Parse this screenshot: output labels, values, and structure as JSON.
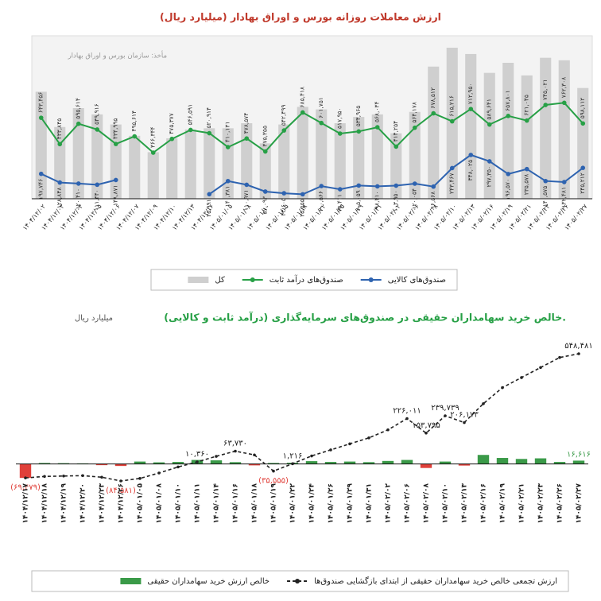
{
  "chart_data": [
    {
      "type": "combo",
      "title": "ارزش معاملات روزانه بورس و اوراق بهادار (میلیارد ریال)",
      "title_color": "#c0392b",
      "source": "مأخذ: سازمان بورس و اوراق بهادار",
      "categories": [
        "۱۴۰۴/۱۲/۰۲",
        "۱۴۰۴/۱۲/۰۳",
        "۱۴۰۴/۱۲/۰۴",
        "۱۴۰۴/۱۲/۰۵",
        "۱۴۰۴/۱۲/۰۶",
        "۱۴۰۴/۱۲/۰۷",
        "۱۴۰۴/۱۲/۰۹",
        "۱۴۰۴/۱۲/۱۰",
        "۱۴۰۴/۱۲/۱۳",
        "۱۴۰۴/۱۲/۱۶",
        "۱۴۰۵/۰۱/۰۵",
        "۱۴۰۵/۰۱/۰۸",
        "۱۴۰۵/۰۱/۱۰",
        "۱۴۰۵/۰۱/۱۵",
        "۱۴۰۵/۰۱/۱۸",
        "۱۴۰۵/۰۱/۲۲",
        "۱۴۰۵/۰۱/۲۵",
        "۱۴۰۵/۰۱/۲۹",
        "۱۴۰۵/۰۱/۳۱",
        "۱۴۰۵/۰۲/۰۲",
        "۱۴۰۵/۰۲/۰۶",
        "۱۴۰۵/۰۲/۰۸",
        "۱۴۰۵/۰۲/۱۰",
        "۱۴۰۵/۰۲/۱۳",
        "۱۴۰۵/۰۲/۱۶",
        "۱۴۰۵/۰۲/۱۹",
        "۱۴۰۵/۰۲/۲۱",
        "۱۴۰۵/۰۲/۲۳",
        "۱۴۰۵/۰۲/۲۶",
        "۱۴۰۵/۰۲/۲۷"
      ],
      "series": [
        {
          "name": "کل",
          "kind": "bar",
          "color": "#cfcfcf",
          "values": [
            850000,
            570000,
            720000,
            670000,
            590000,
            500000,
            370000,
            480000,
            550000,
            560000,
            560000,
            600000,
            440000,
            590000,
            730000,
            710000,
            600000,
            650000,
            670000,
            520000,
            690000,
            1050000,
            1200000,
            1150000,
            1000000,
            1080000,
            980000,
            1120000,
            1100000,
            880000
          ]
        },
        {
          "name": "صندوق‌های درآمد ثابت",
          "kind": "line",
          "color": "#27a046",
          "label_side": "above",
          "values": [
            643456,
            433845,
            595614,
            549916,
            434995,
            495614,
            366344,
            475377,
            546591,
            520914,
            410131,
            478574,
            375355,
            542499,
            685418,
            601751,
            517950,
            534965,
            568034,
            414254,
            564178,
            678512,
            615216,
            712950,
            589641,
            657801,
            621045,
            745021,
            762308,
            598112
          ],
          "value_labels": [
            "۶۴۳,۴۵۶",
            "۴۳۳,۸۴۵",
            "۵۹۵,۶۱۴",
            "۵۴۹,۹۱۶",
            "۴۳۴,۹۹۵",
            "۴۹۵,۶۱۴",
            "۳۶۶,۳۴۴",
            "۴۷۵,۳۷۷",
            "۵۴۶,۵۹۱",
            "۵۲۰,۹۱۴",
            "۴۱۰,۱۳۱",
            "۴۷۸,۵۷۴",
            "۳۷۵,۳۵۵",
            "۵۴۲,۴۹۹",
            "۶۸۵,۴۱۸",
            "۶۰۱,۷۵۱",
            "۵۱۷,۹۵۰",
            "۵۳۴,۹۶۵",
            "۵۶۸,۰۳۴",
            "۴۱۴,۲۵۴",
            "۵۶۴,۱۷۸",
            "۶۷۸,۵۱۲",
            "۶۱۵,۲۱۶",
            "۷۱۲,۹۵۰",
            "۵۸۹,۶۴۱",
            "۶۵۷,۸۰۱",
            "۶۲۱,۰۴۵",
            "۷۴۵,۰۲۱",
            "۷۶۲,۳۰۸",
            "۵۹۸,۱۱۲"
          ]
        },
        {
          "name": "صندوق‌های کالایی",
          "kind": "line",
          "color": "#2e63b0",
          "label_side": "below",
          "values": [
            197746,
            128848,
            120410,
            111440,
            148871,
            null,
            null,
            null,
            null,
            35991,
            140381,
            110971,
            57093,
            43605,
            35555,
            100566,
            75411,
            105059,
            98410,
            103950,
            120054,
            96568,
            243467,
            348025,
            297350,
            196570,
            235578,
            140575,
            132481,
            245212
          ],
          "value_labels": [
            "۱۹۷,۷۴۶",
            "۱۲۸,۸۴۸",
            "۱۲۰,۴۱۰",
            "۱۱۱,۴۴۰",
            "۱۴۸,۸۷۱",
            null,
            null,
            null,
            null,
            "۳۵,۹۹۱",
            "۱۴۰,۳۸۱",
            "۱۱۰,۹۷۱",
            "۵۷,۰۹۳",
            "۴۳,۶۰۵",
            "۳۵,۵۵۵",
            "۱۰۰,۵۶۶",
            "۷۵,۴۱۱",
            "۱۰۵,۰۵۹",
            "۹۸,۴۱۰",
            "۱۰۳,۹۵۰",
            "۱۲۰,۰۵۴",
            "۹۶,۵۶۸",
            "۲۴۳,۴۶۷",
            "۳۴۸,۰۲۵",
            "۲۹۷,۳۵۰",
            "۱۹۶,۵۷۰",
            "۲۳۵,۵۷۸",
            "۱۴۰,۵۷۵",
            "۱۳۲,۴۸۱",
            "۲۴۵,۲۱۲"
          ]
        }
      ]
    },
    {
      "type": "combo",
      "title": "خالص خرید سهامداران حقیقی در صندوق‌های سرمایه‌گذاری (درآمد ثابت و کالایی).",
      "title_color": "#27a046",
      "subtitle": "میلیارد ریال",
      "categories": [
        "۱۴۰۴/۱۲/۱۷",
        "۱۴۰۴/۱۲/۱۸",
        "۱۴۰۴/۱۲/۱۹",
        "۱۴۰۴/۱۲/۲۰",
        "۱۴۰۴/۱۲/۲۳",
        "۱۴۰۴/۱۲/۲۶",
        "۱۴۰۵/۰۱/۰۵",
        "۱۴۰۵/۰۱/۰۸",
        "۱۴۰۵/۰۱/۱۰",
        "۱۴۰۵/۰۱/۱۱",
        "۱۴۰۵/۰۱/۱۴",
        "۱۴۰۵/۰۱/۱۶",
        "۱۴۰۵/۰۱/۱۸",
        "۱۴۰۵/۰۱/۱۹",
        "۱۴۰۵/۰۱/۲۲",
        "۱۴۰۵/۰۱/۲۴",
        "۱۴۰۵/۰۱/۲۶",
        "۱۴۰۵/۰۱/۲۹",
        "۱۴۰۵/۰۱/۳۱",
        "۱۴۰۵/۰۲/۰۲",
        "۱۴۰۵/۰۲/۰۶",
        "۱۴۰۵/۰۲/۰۸",
        "۱۴۰۵/۰۲/۱۰",
        "۱۴۰۵/۰۲/۱۳",
        "۱۴۰۵/۰۲/۱۶",
        "۱۴۰۵/۰۲/۱۹",
        "۱۴۰۵/۰۲/۲۱",
        "۱۴۰۵/۰۲/۲۳",
        "۱۴۰۵/۰۲/۲۶",
        "۱۴۰۵/۰۲/۲۷"
      ],
      "series": [
        {
          "name": "خالص ارزش خرید سهامداران حقیقی",
          "kind": "bar",
          "color": "#3a9a48",
          "negative_color": "#e0403a",
          "values": [
            -69479,
            5000,
            4000,
            3000,
            -6000,
            -10000,
            12000,
            8000,
            10000,
            20000,
            18000,
            9000,
            -7000,
            5000,
            6000,
            14000,
            10000,
            12000,
            9000,
            15000,
            20000,
            -20000,
            12000,
            -8000,
            45000,
            30000,
            25000,
            28000,
            10000,
            16616
          ],
          "value_labels": [
            null,
            null,
            null,
            null,
            null,
            null,
            null,
            null,
            null,
            null,
            null,
            null,
            null,
            null,
            null,
            null,
            null,
            null,
            null,
            null,
            null,
            null,
            null,
            null,
            null,
            null,
            null,
            null,
            null,
            "۱۶,۶۱۶"
          ]
        },
        {
          "name": "ارزش تجمعی خالص خرید سهامداران حقیقی از ابتدای بازگشایی صندوق‌ها",
          "kind": "line",
          "color": "#222222",
          "dashed": true,
          "label_side": "above",
          "values": [
            -69479,
            -62000,
            -60000,
            -58000,
            -66000,
            -84581,
            -72000,
            -45000,
            -15000,
            10360,
            38000,
            63730,
            45000,
            -35555,
            1216,
            40000,
            70000,
            100000,
            130000,
            170000,
            226011,
            153795,
            239739,
            206173,
            300000,
            380000,
            430000,
            480000,
            530000,
            548481
          ],
          "value_labels": [
            "(۶۹,۴۷۹)",
            null,
            null,
            null,
            null,
            "(۸۴,۵۸۱)",
            null,
            null,
            null,
            "۱۰,۳۶۰",
            null,
            "۶۳,۷۳۰",
            null,
            "(۳۵,۵۵۵)",
            "۱,۲۱۶",
            null,
            null,
            null,
            null,
            null,
            "۲۲۶,۰۱۱",
            "۱۵۳,۷۹۵",
            "۲۳۹,۷۳۹",
            "۲۰۶,۱۷۳",
            null,
            null,
            null,
            null,
            null,
            "۵۴۸,۴۸۱"
          ]
        }
      ]
    }
  ]
}
